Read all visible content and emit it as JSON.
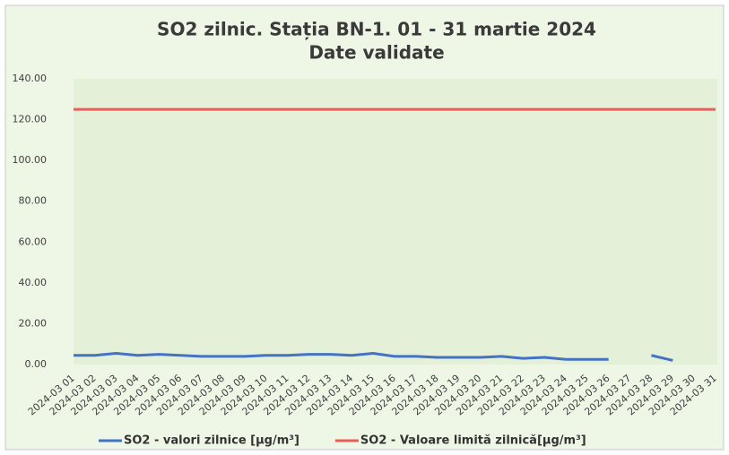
{
  "chart_data": {
    "type": "line",
    "title": "SO2 zilnic. Stația BN-1. 01 - 31 martie 2024",
    "subtitle": "Date validate",
    "categories": [
      "2024-03 01",
      "2024-03 02",
      "2024-03 03",
      "2024-03 04",
      "2024-03 05",
      "2024-03 06",
      "2024-03 07",
      "2024-03 08",
      "2024-03 09",
      "2024-03 10",
      "2024-03 11",
      "2024-03 12",
      "2024-03 13",
      "2024-03 14",
      "2024-03 15",
      "2024-03 16",
      "2024-03 17",
      "2024-03 18",
      "2024-03 19",
      "2024-03 20",
      "2024-03 21",
      "2024-03 22",
      "2024-03 23",
      "2024-03 24",
      "2024-03 25",
      "2024-03 26",
      "2024-03 27",
      "2024-03 28",
      "2024-03 29",
      "2024-03 30",
      "2024-03 31"
    ],
    "series": [
      {
        "name": "SO2 - valori zilnice [µg/m³]",
        "color": "#4472c4",
        "values": [
          4.5,
          4.5,
          5.5,
          4.5,
          5.0,
          4.5,
          4.0,
          4.0,
          4.0,
          4.5,
          4.5,
          5.0,
          5.0,
          4.5,
          5.5,
          4.0,
          4.0,
          3.5,
          3.5,
          3.5,
          4.0,
          3.0,
          3.5,
          2.5,
          2.5,
          2.5,
          null,
          4.5,
          2.0,
          null,
          null
        ]
      },
      {
        "name": "SO2 - Valoare limită zilnică[µg/m³]",
        "color": "#f05a5a",
        "values": [
          125,
          125,
          125,
          125,
          125,
          125,
          125,
          125,
          125,
          125,
          125,
          125,
          125,
          125,
          125,
          125,
          125,
          125,
          125,
          125,
          125,
          125,
          125,
          125,
          125,
          125,
          125,
          125,
          125,
          125,
          125
        ]
      }
    ],
    "ylim": [
      0,
      140
    ],
    "yticks": [
      {
        "value": 0,
        "label": "0.00"
      },
      {
        "value": 20,
        "label": "20.00"
      },
      {
        "value": 40,
        "label": "40.00"
      },
      {
        "value": 60,
        "label": "60.00"
      },
      {
        "value": 80,
        "label": "80.00"
      },
      {
        "value": 100,
        "label": "100.00"
      },
      {
        "value": 120,
        "label": "120.00"
      },
      {
        "value": 140,
        "label": "140.00"
      }
    ],
    "grid": false,
    "legend": "bottom"
  }
}
